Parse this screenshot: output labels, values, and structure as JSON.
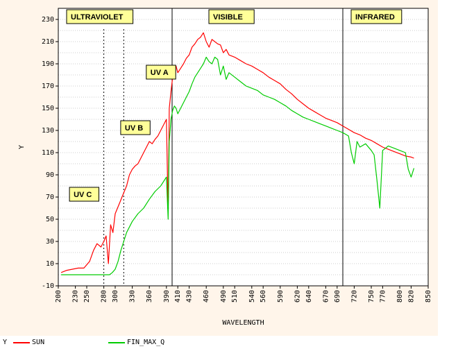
{
  "chart_data": {
    "type": "line",
    "xlabel": "WAVELENGTH",
    "ylabel": "Y",
    "xlim": [
      200,
      850
    ],
    "ylim": [
      -10,
      240
    ],
    "x_ticks": [
      200,
      230,
      250,
      280,
      300,
      330,
      360,
      390,
      410,
      430,
      460,
      490,
      510,
      540,
      560,
      590,
      620,
      640,
      670,
      690,
      720,
      750,
      770,
      800,
      820,
      850
    ],
    "y_ticks": [
      -10,
      10,
      30,
      50,
      70,
      90,
      110,
      130,
      150,
      170,
      190,
      210,
      230
    ],
    "grid": true,
    "series": [
      {
        "name": "SUN",
        "color": "#ff0000",
        "x": [
          205,
          215,
          225,
          235,
          245,
          255,
          262,
          268,
          275,
          280,
          284,
          288,
          292,
          296,
          300,
          304,
          308,
          312,
          316,
          320,
          325,
          330,
          335,
          340,
          345,
          350,
          355,
          360,
          365,
          370,
          375,
          380,
          385,
          390,
          393,
          395,
          398,
          401,
          404,
          407,
          410,
          415,
          420,
          425,
          430,
          435,
          440,
          445,
          450,
          455,
          460,
          465,
          470,
          475,
          480,
          485,
          490,
          495,
          500,
          510,
          520,
          530,
          540,
          550,
          560,
          570,
          580,
          590,
          600,
          610,
          620,
          630,
          640,
          650,
          660,
          670,
          680,
          690,
          700,
          710,
          720,
          730,
          740,
          750,
          760,
          770,
          780,
          790,
          800,
          810,
          820,
          825
        ],
        "values": [
          2,
          4,
          5,
          6,
          6,
          12,
          22,
          28,
          25,
          30,
          35,
          10,
          45,
          38,
          55,
          60,
          65,
          70,
          75,
          80,
          90,
          95,
          98,
          100,
          105,
          110,
          115,
          120,
          118,
          122,
          125,
          130,
          135,
          140,
          55,
          150,
          165,
          178,
          185,
          188,
          182,
          186,
          190,
          195,
          198,
          205,
          208,
          212,
          214,
          218,
          210,
          205,
          212,
          210,
          208,
          207,
          200,
          203,
          198,
          196,
          193,
          190,
          188,
          185,
          182,
          178,
          175,
          172,
          167,
          163,
          158,
          154,
          150,
          147,
          144,
          141,
          139,
          137,
          134,
          131,
          128,
          126,
          123,
          121,
          118,
          115,
          113,
          111,
          109,
          107,
          106,
          105
        ]
      },
      {
        "name": "FIN_MAX_Q",
        "color": "#00cc00",
        "x": [
          205,
          220,
          240,
          260,
          280,
          290,
          295,
          300,
          305,
          310,
          315,
          320,
          330,
          340,
          350,
          360,
          370,
          380,
          390,
          393,
          395,
          398,
          401,
          404,
          407,
          410,
          415,
          420,
          425,
          430,
          435,
          440,
          445,
          450,
          455,
          460,
          465,
          470,
          475,
          480,
          485,
          490,
          495,
          500,
          510,
          520,
          530,
          540,
          550,
          560,
          570,
          580,
          590,
          600,
          610,
          620,
          630,
          640,
          650,
          660,
          670,
          680,
          690,
          700,
          710,
          715,
          720,
          725,
          730,
          740,
          750,
          755,
          760,
          765,
          770,
          780,
          790,
          800,
          810,
          815,
          820,
          825
        ],
        "values": [
          0,
          0,
          0,
          0,
          0,
          0,
          2,
          5,
          12,
          22,
          30,
          38,
          48,
          55,
          60,
          68,
          75,
          80,
          88,
          50,
          120,
          140,
          148,
          152,
          150,
          145,
          150,
          155,
          160,
          165,
          172,
          178,
          182,
          186,
          190,
          196,
          192,
          190,
          196,
          194,
          180,
          188,
          176,
          182,
          178,
          174,
          170,
          168,
          166,
          162,
          160,
          158,
          155,
          152,
          148,
          145,
          142,
          140,
          138,
          136,
          134,
          132,
          130,
          128,
          125,
          110,
          100,
          120,
          115,
          118,
          112,
          108,
          85,
          60,
          112,
          116,
          114,
          112,
          110,
          95,
          88,
          96
        ]
      }
    ],
    "regions": [
      {
        "label": "ULTRAVIOLET",
        "x": 200,
        "y": 230
      },
      {
        "label": "VISIBLE",
        "x": 450,
        "y": 230
      },
      {
        "label": "INFRARED",
        "x": 700,
        "y": 230
      },
      {
        "label": "UV A",
        "x": 340,
        "y": 180
      },
      {
        "label": "UV B",
        "x": 295,
        "y": 130
      },
      {
        "label": "UV C",
        "x": 205,
        "y": 70
      }
    ],
    "vlines_solid": [
      400,
      700
    ],
    "vlines_dotted": [
      280,
      315
    ]
  }
}
